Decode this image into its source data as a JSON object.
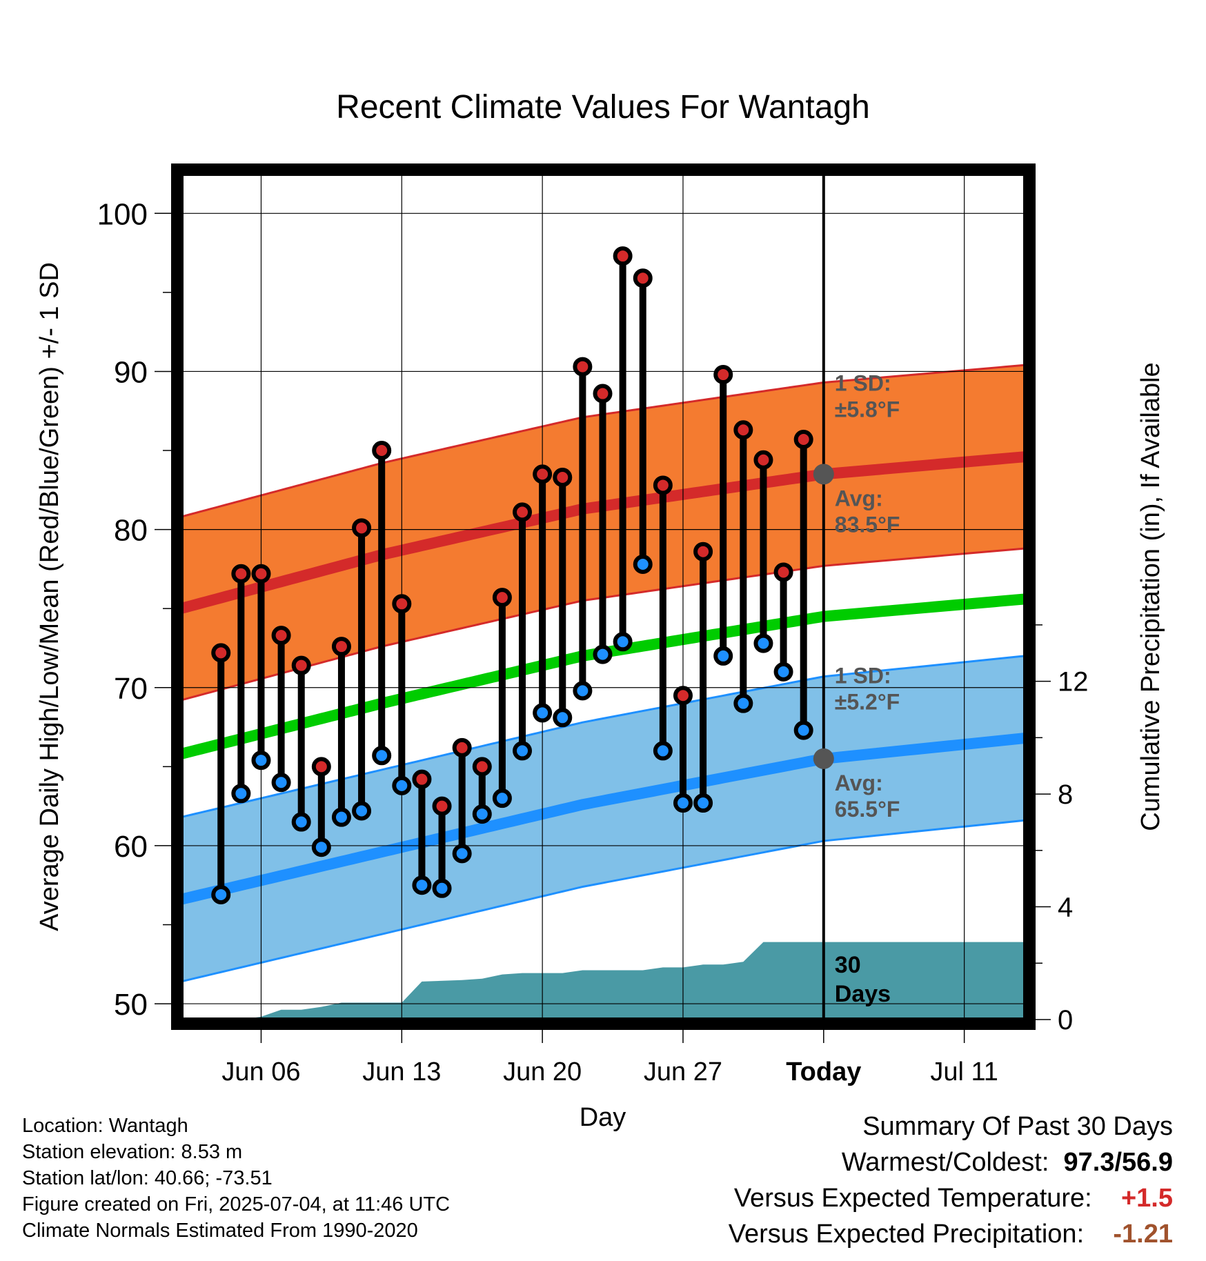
{
  "title": "Recent Climate Values For Wantagh",
  "info": {
    "location": "Location: Wantagh",
    "elevation": "Station elevation: 8.53 m",
    "latlon": "Station lat/lon: 40.66; -73.51",
    "created": "Figure created on Fri, 2025-07-04, at 11:46 UTC",
    "normals": "Climate Normals Estimated From 1990-2020"
  },
  "summary": {
    "heading": "Summary Of Past 30 Days",
    "warmest_label": "Warmest/Coldest:",
    "warmest_value": "97.3/56.9",
    "temp_label": "Versus Expected Temperature:",
    "temp_value": "+1.5",
    "temp_color": "#d42a2a",
    "precip_label": "Versus Expected Precipitation:",
    "precip_value": "-1.21",
    "precip_color": "#a0522d"
  },
  "chart_data": {
    "type": "line",
    "title": "Recent Climate Values For Wantagh",
    "xlabel": "Day",
    "ylabel": "Average Daily High/Low/Mean (Red/Blue/Green) +/- 1 SD",
    "y2label": "Cumulative Precipitation (in), If Available",
    "xlim": [
      "2025-06-02",
      "2025-07-14"
    ],
    "ylim": [
      49,
      102.5
    ],
    "y2lim": [
      0,
      30
    ],
    "x_ticks": [
      {
        "date": "2025-06-06",
        "label": "Jun 06"
      },
      {
        "date": "2025-06-13",
        "label": "Jun 13"
      },
      {
        "date": "2025-06-20",
        "label": "Jun 20"
      },
      {
        "date": "2025-06-27",
        "label": "Jun 27"
      },
      {
        "date": "2025-07-04",
        "label": "Today"
      },
      {
        "date": "2025-07-11",
        "label": "Jul 11"
      }
    ],
    "y_ticks": [
      50,
      60,
      70,
      80,
      90,
      100
    ],
    "y2_ticks": [
      0,
      4,
      8,
      12
    ],
    "grid": true,
    "today": "2025-07-04",
    "period_label": [
      "30",
      "Days"
    ],
    "colors": {
      "high_band": "#f47b30",
      "high_edge": "#d42a2a",
      "high_line": "#d42a2a",
      "low_band": "#80c0e8",
      "low_edge": "#1e90ff",
      "low_line": "#1e90ff",
      "mean_line": "#00cc00",
      "precip": "#4a9aa5",
      "high_dot": "#d42a2a",
      "low_dot": "#1e90ff",
      "today_dot": "#555555",
      "annotation": "#555555"
    },
    "normals_x": [
      "2025-06-02",
      "2025-06-12",
      "2025-06-22",
      "2025-07-04",
      "2025-07-14"
    ],
    "normal_high": [
      75.0,
      78.4,
      81.3,
      83.5,
      84.6
    ],
    "normal_high_sd": 5.8,
    "normal_low": [
      56.6,
      59.6,
      62.6,
      65.5,
      66.8
    ],
    "normal_low_sd": 5.2,
    "normal_mean": [
      65.8,
      69.0,
      72.0,
      74.5,
      75.6
    ],
    "high_annotation": {
      "sd": [
        "1 SD:",
        "±5.8°F"
      ],
      "avg": [
        "Avg:",
        "83.5°F"
      ],
      "value": 83.5
    },
    "low_annotation": {
      "sd": [
        "1 SD:",
        "±5.2°F"
      ],
      "avg": [
        "Avg:",
        "65.5°F"
      ],
      "value": 65.5
    },
    "daily": [
      {
        "date": "2025-06-04",
        "high": 72.2,
        "low": 56.9
      },
      {
        "date": "2025-06-05",
        "high": 77.2,
        "low": 63.3
      },
      {
        "date": "2025-06-06",
        "high": 77.2,
        "low": 65.4
      },
      {
        "date": "2025-06-07",
        "high": 73.3,
        "low": 64.0
      },
      {
        "date": "2025-06-08",
        "high": 71.4,
        "low": 61.5
      },
      {
        "date": "2025-06-09",
        "high": 65.0,
        "low": 59.9
      },
      {
        "date": "2025-06-10",
        "high": 72.6,
        "low": 61.8
      },
      {
        "date": "2025-06-11",
        "high": 80.1,
        "low": 62.2
      },
      {
        "date": "2025-06-12",
        "high": 85.0,
        "low": 65.7
      },
      {
        "date": "2025-06-13",
        "high": 75.3,
        "low": 63.8
      },
      {
        "date": "2025-06-14",
        "high": 64.2,
        "low": 57.5
      },
      {
        "date": "2025-06-15",
        "high": 62.5,
        "low": 57.3
      },
      {
        "date": "2025-06-16",
        "high": 66.2,
        "low": 59.5
      },
      {
        "date": "2025-06-17",
        "high": 65.0,
        "low": 62.0
      },
      {
        "date": "2025-06-18",
        "high": 75.7,
        "low": 63.0
      },
      {
        "date": "2025-06-19",
        "high": 81.1,
        "low": 66.0
      },
      {
        "date": "2025-06-20",
        "high": 83.5,
        "low": 68.4
      },
      {
        "date": "2025-06-21",
        "high": 83.3,
        "low": 68.1
      },
      {
        "date": "2025-06-22",
        "high": 90.3,
        "low": 69.8
      },
      {
        "date": "2025-06-23",
        "high": 88.6,
        "low": 72.1
      },
      {
        "date": "2025-06-24",
        "high": 97.3,
        "low": 72.9
      },
      {
        "date": "2025-06-25",
        "high": 95.9,
        "low": 77.8
      },
      {
        "date": "2025-06-26",
        "high": 82.8,
        "low": 66.0
      },
      {
        "date": "2025-06-27",
        "high": 69.5,
        "low": 62.7
      },
      {
        "date": "2025-06-28",
        "high": 78.6,
        "low": 62.7
      },
      {
        "date": "2025-06-29",
        "high": 89.8,
        "low": 72.0
      },
      {
        "date": "2025-06-30",
        "high": 86.3,
        "low": 69.0
      },
      {
        "date": "2025-07-01",
        "high": 84.4,
        "low": 72.8
      },
      {
        "date": "2025-07-02",
        "high": 77.3,
        "low": 71.0
      },
      {
        "date": "2025-07-03",
        "high": 85.7,
        "low": 67.3
      }
    ],
    "precip_cumulative": [
      {
        "date": "2025-06-02",
        "value": 0.0
      },
      {
        "date": "2025-06-05",
        "value": 0.0
      },
      {
        "date": "2025-06-06",
        "value": 0.1
      },
      {
        "date": "2025-06-07",
        "value": 0.35
      },
      {
        "date": "2025-06-08",
        "value": 0.35
      },
      {
        "date": "2025-06-09",
        "value": 0.45
      },
      {
        "date": "2025-06-10",
        "value": 0.6
      },
      {
        "date": "2025-06-13",
        "value": 0.6
      },
      {
        "date": "2025-06-14",
        "value": 1.35
      },
      {
        "date": "2025-06-16",
        "value": 1.4
      },
      {
        "date": "2025-06-17",
        "value": 1.45
      },
      {
        "date": "2025-06-18",
        "value": 1.6
      },
      {
        "date": "2025-06-19",
        "value": 1.65
      },
      {
        "date": "2025-06-21",
        "value": 1.65
      },
      {
        "date": "2025-06-22",
        "value": 1.75
      },
      {
        "date": "2025-06-25",
        "value": 1.75
      },
      {
        "date": "2025-06-26",
        "value": 1.85
      },
      {
        "date": "2025-06-27",
        "value": 1.85
      },
      {
        "date": "2025-06-28",
        "value": 1.95
      },
      {
        "date": "2025-06-29",
        "value": 1.95
      },
      {
        "date": "2025-06-30",
        "value": 2.05
      },
      {
        "date": "2025-07-01",
        "value": 2.75
      },
      {
        "date": "2025-07-14",
        "value": 2.75
      }
    ]
  }
}
